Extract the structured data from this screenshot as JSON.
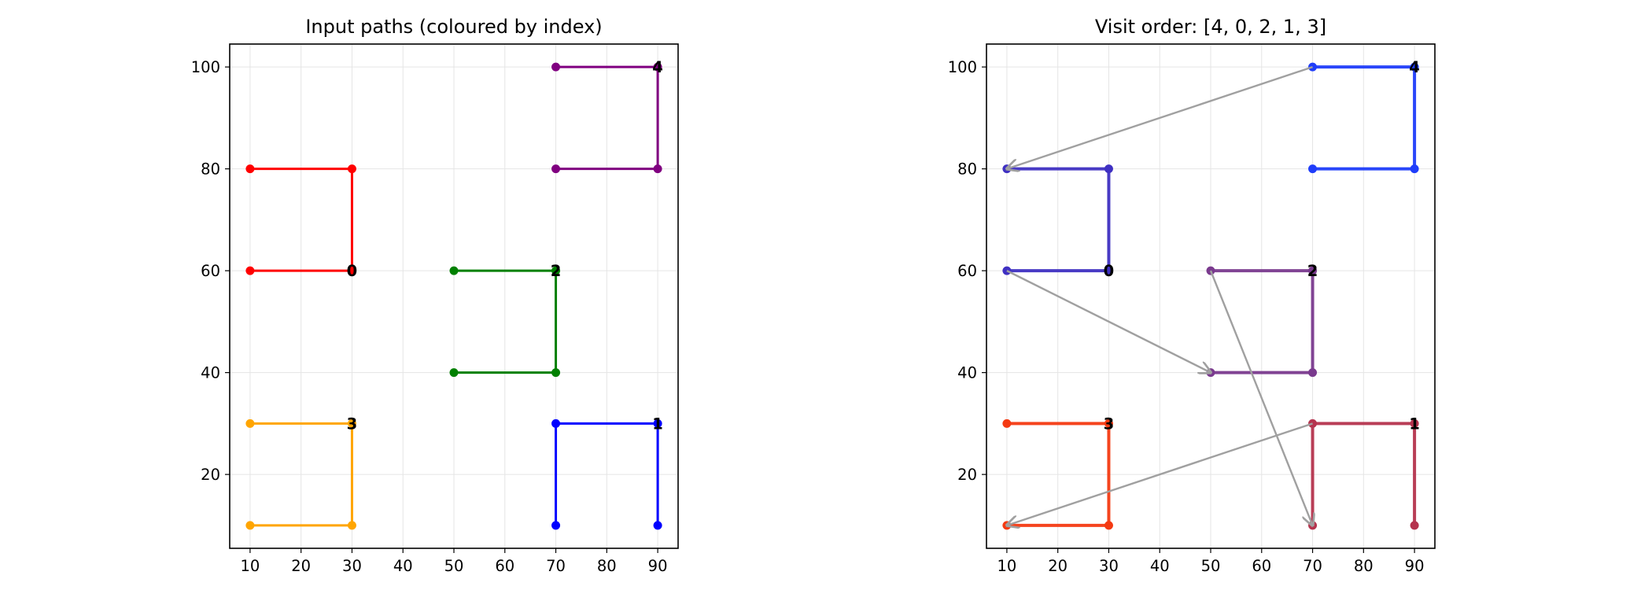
{
  "chart_data": [
    {
      "type": "line",
      "title": "Input paths (coloured by index)",
      "xlabel": "",
      "ylabel": "",
      "xlim": [
        6,
        94
      ],
      "ylim": [
        5.5,
        104.5
      ],
      "xticks": [
        10,
        20,
        30,
        40,
        50,
        60,
        70,
        80,
        90
      ],
      "yticks": [
        20,
        40,
        60,
        80,
        100
      ],
      "grid": true,
      "series": [
        {
          "label": "0",
          "color": "#ff0000",
          "x": [
            10,
            30,
            30,
            10
          ],
          "y": [
            80,
            80,
            60,
            60
          ],
          "label_at": [
            30,
            60
          ]
        },
        {
          "label": "1",
          "color": "#0000ff",
          "x": [
            90,
            90,
            70,
            70
          ],
          "y": [
            10,
            30,
            30,
            10
          ],
          "label_at": [
            90,
            30
          ]
        },
        {
          "label": "2",
          "color": "#008000",
          "x": [
            50,
            70,
            70,
            50
          ],
          "y": [
            60,
            60,
            40,
            40
          ],
          "label_at": [
            70,
            60
          ]
        },
        {
          "label": "3",
          "color": "#ffa500",
          "x": [
            10,
            30,
            30,
            10
          ],
          "y": [
            10,
            10,
            30,
            30
          ],
          "label_at": [
            30,
            30
          ]
        },
        {
          "label": "4",
          "color": "#800080",
          "x": [
            70,
            90,
            90,
            70
          ],
          "y": [
            100,
            100,
            80,
            80
          ],
          "label_at": [
            90,
            100
          ]
        }
      ],
      "arrows": []
    },
    {
      "type": "line",
      "title": "Visit order: [4, 0, 2, 1, 3]",
      "xlabel": "",
      "ylabel": "",
      "xlim": [
        6,
        94
      ],
      "ylim": [
        5.5,
        104.5
      ],
      "xticks": [
        10,
        20,
        30,
        40,
        50,
        60,
        70,
        80,
        90
      ],
      "yticks": [
        20,
        40,
        60,
        80,
        100
      ],
      "grid": true,
      "series": [
        {
          "label": "4",
          "color": "#1f3dfa",
          "x": [
            70,
            90,
            90,
            70
          ],
          "y": [
            100,
            100,
            80,
            80
          ],
          "label_at": [
            90,
            100
          ]
        },
        {
          "label": "0",
          "color": "#3f30c2",
          "x": [
            10,
            30,
            30,
            10
          ],
          "y": [
            80,
            80,
            60,
            60
          ],
          "label_at": [
            30,
            60
          ]
        },
        {
          "label": "2",
          "color": "#7a3a8e",
          "x": [
            50,
            70,
            70,
            50
          ],
          "y": [
            60,
            60,
            40,
            40
          ],
          "label_at": [
            70,
            60
          ]
        },
        {
          "label": "1",
          "color": "#b5344e",
          "x": [
            90,
            90,
            70,
            70
          ],
          "y": [
            10,
            30,
            30,
            10
          ],
          "label_at": [
            90,
            30
          ]
        },
        {
          "label": "3",
          "color": "#f43a12",
          "x": [
            10,
            30,
            30,
            10
          ],
          "y": [
            10,
            10,
            30,
            30
          ],
          "label_at": [
            30,
            30
          ]
        }
      ],
      "arrows": [
        {
          "from": [
            70,
            100
          ],
          "to": [
            10,
            80
          ]
        },
        {
          "from": [
            10,
            60
          ],
          "to": [
            50,
            40
          ]
        },
        {
          "from": [
            50,
            60
          ],
          "to": [
            70,
            10
          ]
        },
        {
          "from": [
            70,
            30
          ],
          "to": [
            10,
            10
          ]
        }
      ],
      "arrow_color": "#a0a0a0"
    }
  ]
}
